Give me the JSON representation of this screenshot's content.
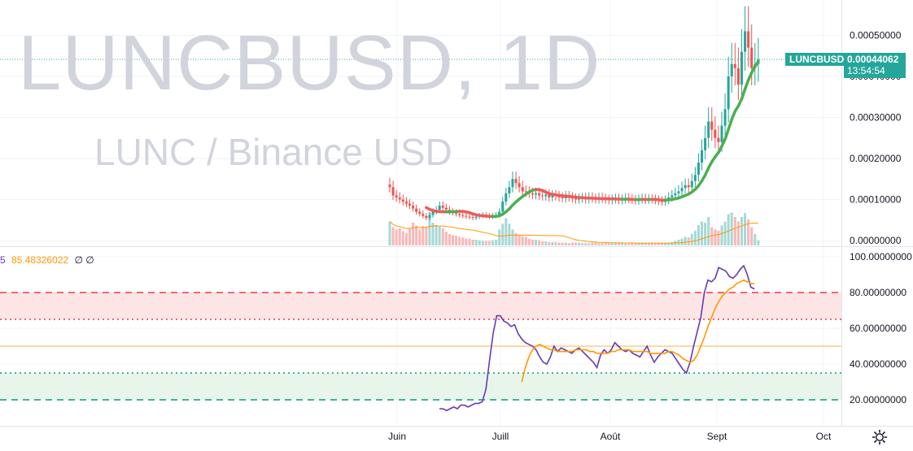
{
  "watermark": {
    "symbol": "LUNCBUSD, 1D",
    "pair": "LUNC / Binance USD"
  },
  "colors": {
    "up": "#26a69a",
    "down": "#ef5350",
    "ma_up": "#4caf50",
    "ma_down": "#f05a5a",
    "vol_up": "#a6d9d4",
    "vol_down": "#f7b8b7",
    "vol_ma": "#ff9800",
    "rsi": "#673ab7",
    "rsi_ma": "#ff9800",
    "band_upper_fill": "#fde5e5",
    "band_lower_fill": "#e8f5ea",
    "line_red": "#f23645",
    "line_green": "#089981",
    "mid_line": "#f5b74a",
    "grid": "#f0f3fa",
    "axis_text": "#131722",
    "price_tag": "#26a69a"
  },
  "last_price": {
    "symbol": "LUNCBUSD",
    "price": "0.00044062",
    "countdown": "13:54:54"
  },
  "oscillator_legend": {
    "value1": "5",
    "value2": "85.48326022",
    "value3": "∅ ∅"
  },
  "axis": {
    "price_ticks": [
      "0.00050000",
      "0.00040000",
      "0.00030000",
      "0.00020000",
      "0.00010000",
      "0.00000000"
    ],
    "osc_ticks": [
      "100.00000000",
      "80.00000000",
      "60.00000000",
      "40.00000000",
      "20.00000000"
    ],
    "time_ticks": [
      "Juin",
      "Juill",
      "Août",
      "Sept",
      "Oct"
    ]
  },
  "chart_data": [
    {
      "type": "candlestick",
      "title": "LUNCBUSD, 1D",
      "subtitle": "LUNC / Binance USD",
      "x_range": [
        "2022-05-28",
        "2022-10-03"
      ],
      "ylim": [
        0.0,
        0.00058
      ],
      "y_ticks": [
        0.0,
        0.0001,
        0.0002,
        0.0003,
        0.0004,
        0.0005
      ],
      "x_ticks": [
        "Juin",
        "Juill",
        "Août",
        "Sept",
        "Oct"
      ],
      "grid": true,
      "close": [
        0.00013,
        0.00011,
        0.000105,
        0.0001,
        9.5e-05,
        9e-05,
        8.5e-05,
        7.8e-05,
        7e-05,
        6.5e-05,
        6e-05,
        5.5e-05,
        6.2e-05,
        7e-05,
        7.5e-05,
        8.5e-05,
        8e-05,
        7.5e-05,
        7e-05,
        6.8e-05,
        6.5e-05,
        6.2e-05,
        6e-05,
        5.8e-05,
        5.7e-05,
        5.5e-05,
        5.8e-05,
        6e-05,
        6.2e-05,
        6e-05,
        5.8e-05,
        6e-05,
        6.2e-05,
        7e-05,
        9.5e-05,
        0.000115,
        0.00013,
        0.00015,
        0.00014,
        0.00013,
        0.00012,
        0.000118,
        0.000115,
        0.000112,
        0.000115,
        0.00011,
        0.000108,
        0.000112,
        0.000105,
        0.00011,
        0.000108,
        0.000105,
        0.000103,
        0.000108,
        0.000105,
        0.000102,
        0.0001,
        0.000102,
        0.000104,
        0.0001,
        0.000105,
        0.000102,
        0.0001,
        0.000104,
        0.000102,
        0.0001,
        9.8e-05,
        0.0001,
        0.000102,
        9.8e-05,
        0.0001,
        0.000103,
        0.000101,
        9.9e-05,
        9.7e-05,
        0.0001,
        0.000102,
        9.9e-05,
        0.000101,
        0.0001,
        9.8e-05,
        9.6e-05,
        9.4e-05,
        9.8e-05,
        0.000105,
        0.00011,
        0.000115,
        0.00012,
        0.000128,
        0.000135,
        0.00013,
        0.000145,
        0.00016,
        0.00019,
        0.00022,
        0.00025,
        0.00029,
        0.00027,
        0.00025,
        0.00024,
        0.00028,
        0.00032,
        0.0004,
        0.00043,
        0.00042,
        0.00038,
        0.00046,
        0.00051,
        0.00047,
        0.00042,
        0.00043,
        0.000441
      ],
      "volume_max": 1.0,
      "volume": [
        0.42,
        0.32,
        0.28,
        0.3,
        0.25,
        0.22,
        0.3,
        0.4,
        0.35,
        0.28,
        0.34,
        0.33,
        0.58,
        0.4,
        0.36,
        0.33,
        0.3,
        0.24,
        0.2,
        0.18,
        0.17,
        0.15,
        0.14,
        0.12,
        0.12,
        0.1,
        0.1,
        0.09,
        0.08,
        0.08,
        0.08,
        0.09,
        0.1,
        0.28,
        0.38,
        0.48,
        0.38,
        0.28,
        0.22,
        0.18,
        0.16,
        0.15,
        0.12,
        0.1,
        0.1,
        0.09,
        0.07,
        0.07,
        0.06,
        0.06,
        0.06,
        0.05,
        0.05,
        0.05,
        0.04,
        0.05,
        0.05,
        0.05,
        0.04,
        0.04,
        0.04,
        0.05,
        0.05,
        0.04,
        0.04,
        0.04,
        0.04,
        0.04,
        0.05,
        0.04,
        0.04,
        0.03,
        0.03,
        0.04,
        0.04,
        0.04,
        0.05,
        0.04,
        0.04,
        0.04,
        0.03,
        0.04,
        0.04,
        0.05,
        0.05,
        0.06,
        0.08,
        0.1,
        0.12,
        0.15,
        0.14,
        0.2,
        0.26,
        0.36,
        0.42,
        0.4,
        0.5,
        0.32,
        0.28,
        0.26,
        0.35,
        0.42,
        0.55,
        0.58,
        0.5,
        0.42,
        0.5,
        0.57,
        0.46,
        0.32,
        0.2,
        0.09
      ]
    },
    {
      "type": "line",
      "title": "",
      "ylim": [
        10,
        105
      ],
      "y_ticks": [
        100,
        80,
        60,
        40,
        20
      ],
      "bands": {
        "upper": 80,
        "upper_inner": 65,
        "mid": 50,
        "lower_inner": 35,
        "lower": 20
      },
      "series": [
        {
          "values": [
            15,
            15,
            14,
            15,
            16,
            15,
            17,
            17,
            16,
            17,
            18,
            18,
            19,
            26,
            42,
            57,
            67,
            67,
            64,
            63,
            61,
            62,
            57,
            54,
            52,
            51,
            50,
            48,
            44,
            41,
            40,
            44,
            50,
            47,
            49,
            48,
            47,
            46,
            48,
            49,
            47,
            45,
            43,
            41,
            38,
            45,
            48,
            46,
            48,
            52,
            50,
            48,
            47,
            48,
            46,
            45,
            44,
            47,
            50,
            45,
            41,
            44,
            46,
            48,
            47,
            46,
            43,
            40,
            37,
            35,
            41,
            50,
            58,
            66,
            80,
            87,
            86,
            88,
            94,
            93,
            92,
            89,
            88,
            90,
            93,
            95,
            90,
            83,
            82
          ]
        },
        {
          "values": [
            null,
            null,
            null,
            null,
            null,
            null,
            null,
            null,
            null,
            null,
            null,
            null,
            null,
            null,
            null,
            null,
            null,
            null,
            null,
            null,
            null,
            null,
            null,
            30,
            38,
            44,
            48,
            50,
            51,
            50,
            49,
            48,
            48,
            47,
            47,
            47,
            47,
            47,
            48,
            48,
            48,
            48,
            47,
            47,
            46,
            46,
            46,
            46,
            47,
            47,
            48,
            48,
            48,
            48,
            47,
            47,
            47,
            47,
            47,
            46,
            46,
            46,
            46,
            46,
            47,
            47,
            46,
            45,
            43,
            42,
            41,
            42,
            45,
            50,
            55,
            61,
            66,
            71,
            75,
            78,
            80,
            82,
            83,
            85,
            86,
            87,
            86,
            85,
            85
          ]
        }
      ],
      "legend_values": [
        "5",
        "85.48326022"
      ]
    }
  ]
}
